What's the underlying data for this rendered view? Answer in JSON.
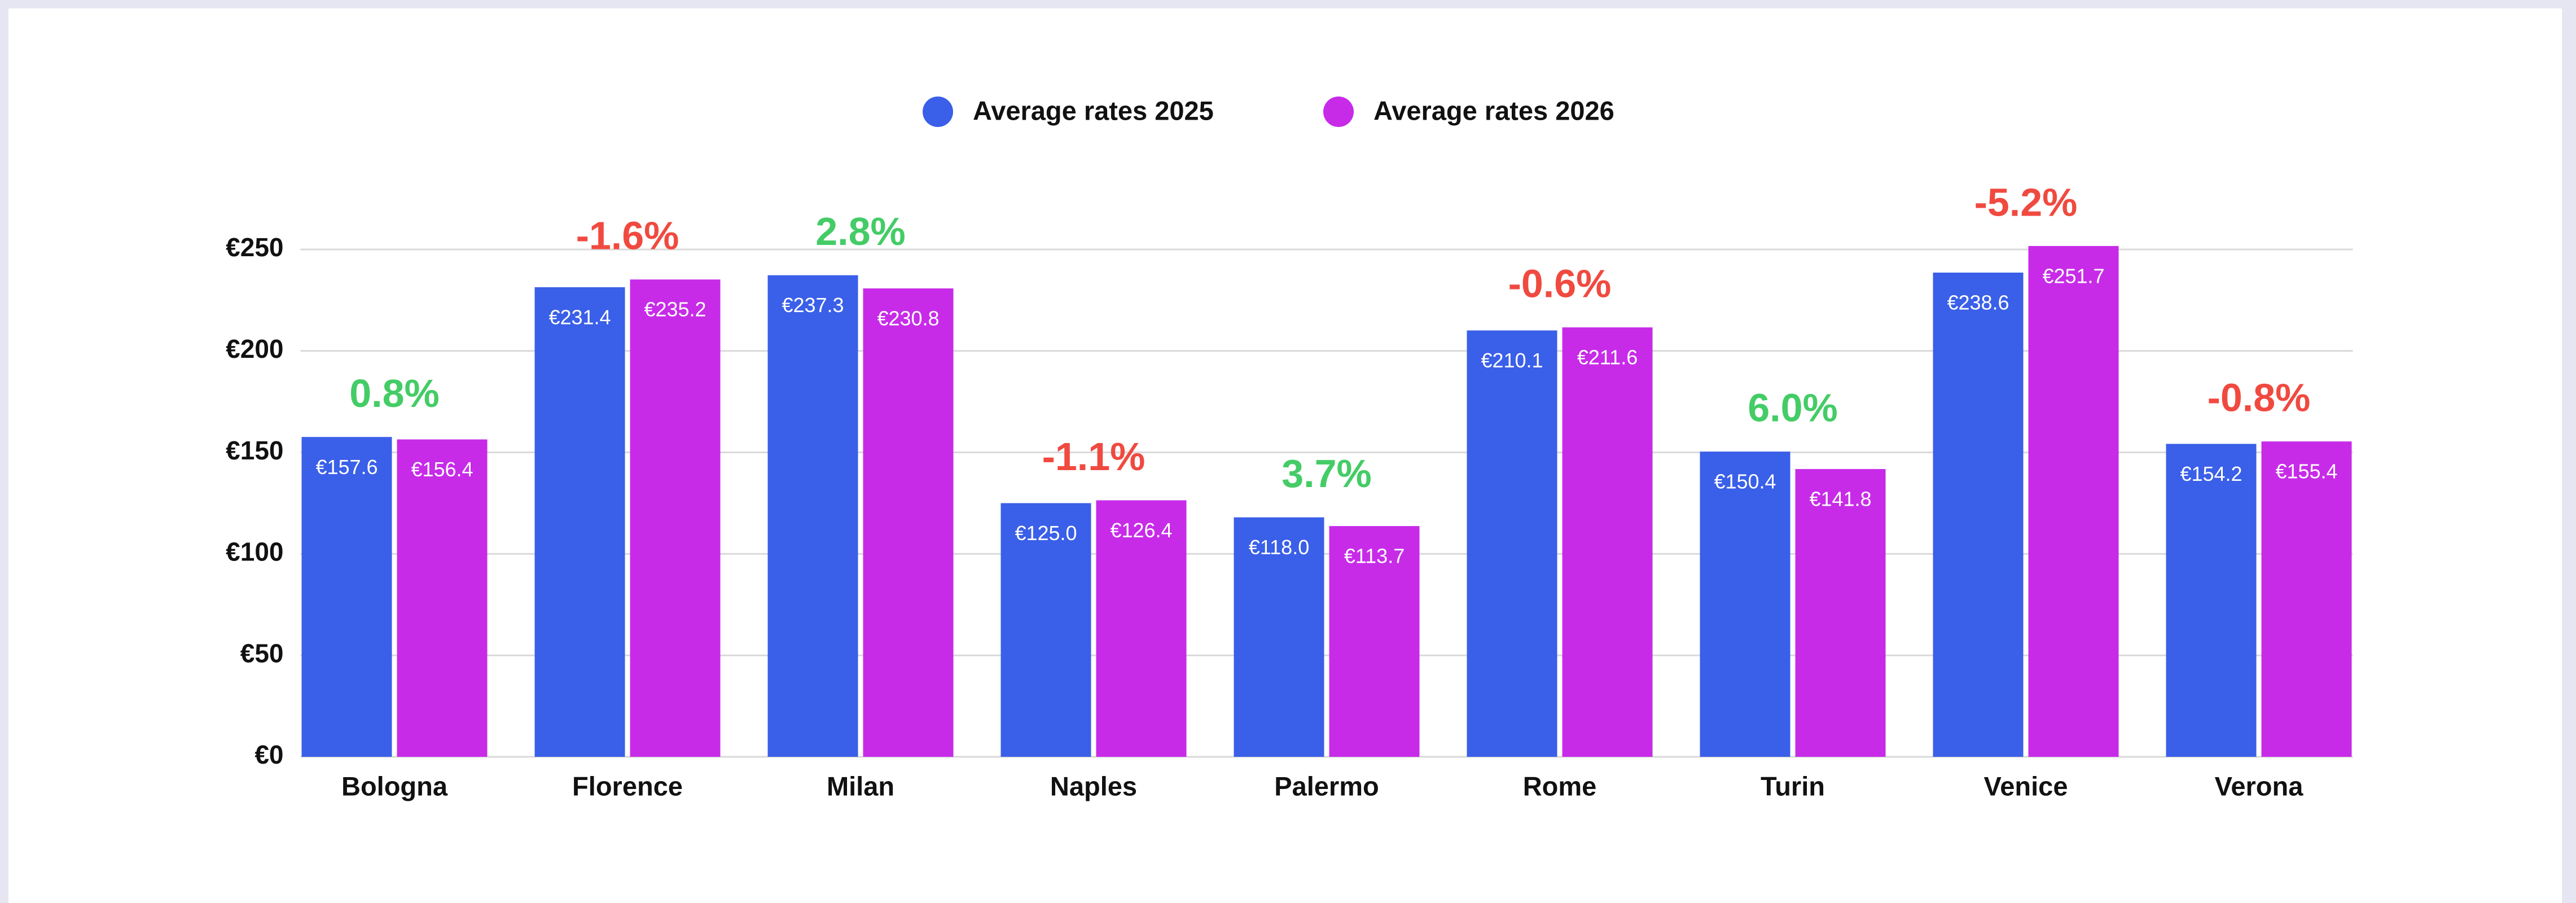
{
  "chart_data": {
    "type": "bar",
    "categories": [
      "Bologna",
      "Florence",
      "Milan",
      "Naples",
      "Palermo",
      "Rome",
      "Turin",
      "Venice",
      "Verona"
    ],
    "series": [
      {
        "name": "Average rates 2025",
        "color": "#3a5fe8",
        "values": [
          157.6,
          231.4,
          237.3,
          125.0,
          118.0,
          210.1,
          150.4,
          238.6,
          154.2
        ],
        "value_labels": [
          "€157.6",
          "€231.4",
          "€237.3",
          "€125.0",
          "€118.0",
          "€210.1",
          "€150.4",
          "€238.6",
          "€154.2"
        ]
      },
      {
        "name": "Average rates 2026",
        "color": "#c72be8",
        "values": [
          156.4,
          235.2,
          230.8,
          126.4,
          113.7,
          211.6,
          141.8,
          251.7,
          155.4
        ],
        "value_labels": [
          "€156.4",
          "€235.2",
          "€230.8",
          "€126.4",
          "€113.7",
          "€211.6",
          "€141.8",
          "€251.7",
          "€155.4"
        ]
      }
    ],
    "annotations": [
      "0.8%",
      "-1.6%",
      "2.8%",
      "-1.1%",
      "3.7%",
      "-0.6%",
      "6.0%",
      "-5.2%",
      "-0.8%"
    ],
    "annotation_colors": [
      "#44cc66",
      "#f04a40",
      "#44cc66",
      "#f04a40",
      "#44cc66",
      "#f04a40",
      "#44cc66",
      "#f04a40",
      "#f04a40"
    ],
    "ylim": [
      0,
      250
    ],
    "yticks": [
      {
        "value": 0,
        "label": "€0"
      },
      {
        "value": 50,
        "label": "€50"
      },
      {
        "value": 100,
        "label": "€100"
      },
      {
        "value": 150,
        "label": "€150"
      },
      {
        "value": 200,
        "label": "€200"
      },
      {
        "value": 250,
        "label": "€250"
      }
    ],
    "grid": true,
    "legend": "top"
  }
}
